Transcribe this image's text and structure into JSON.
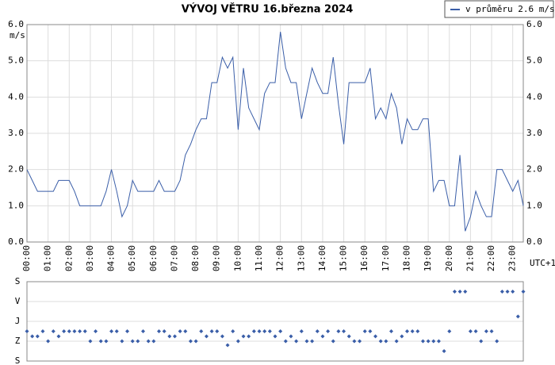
{
  "chart_data": [
    {
      "type": "line",
      "title": "VÝVOJ VĚTRU  16.března 2024",
      "y_label": "m/s",
      "x_label": "UTC+1",
      "grid": true,
      "legend": "top-right",
      "x": [
        0,
        0.25,
        0.5,
        0.75,
        1,
        1.25,
        1.5,
        1.75,
        2,
        2.25,
        2.5,
        2.75,
        3,
        3.25,
        3.5,
        3.75,
        4,
        4.25,
        4.5,
        4.75,
        5,
        5.25,
        5.5,
        5.75,
        6,
        6.25,
        6.5,
        6.75,
        7,
        7.25,
        7.5,
        7.75,
        8,
        8.25,
        8.5,
        8.75,
        9,
        9.25,
        9.5,
        9.75,
        10,
        10.25,
        10.5,
        10.75,
        11,
        11.25,
        11.5,
        11.75,
        12,
        12.25,
        12.5,
        12.75,
        13,
        13.25,
        13.5,
        13.75,
        14,
        14.25,
        14.5,
        14.75,
        15,
        15.25,
        15.5,
        15.75,
        16,
        16.25,
        16.5,
        16.75,
        17,
        17.25,
        17.5,
        17.75,
        18,
        18.25,
        18.5,
        18.75,
        19,
        19.25,
        19.5,
        19.75,
        20,
        20.25,
        20.5,
        20.75,
        21,
        21.25,
        21.5,
        21.75,
        22,
        22.25,
        22.5,
        22.75,
        23,
        23.25,
        23.5
      ],
      "series": [
        {
          "name": "v průměru 2.6 m/s",
          "color": "#3a5ea8",
          "values": [
            2.0,
            1.7,
            1.4,
            1.4,
            1.4,
            1.4,
            1.7,
            1.7,
            1.7,
            1.4,
            1.0,
            1.0,
            1.0,
            1.0,
            1.0,
            1.4,
            2.0,
            1.4,
            0.7,
            1.0,
            1.7,
            1.4,
            1.4,
            1.4,
            1.4,
            1.7,
            1.4,
            1.4,
            1.4,
            1.7,
            2.4,
            2.7,
            3.1,
            3.4,
            3.4,
            4.4,
            4.4,
            5.1,
            4.8,
            5.1,
            3.1,
            4.8,
            3.7,
            3.4,
            3.1,
            4.1,
            4.4,
            4.4,
            5.8,
            4.8,
            4.4,
            4.4,
            3.4,
            4.1,
            4.8,
            4.4,
            4.1,
            4.1,
            5.1,
            3.8,
            2.7,
            4.4,
            4.4,
            4.4,
            4.4,
            4.8,
            3.4,
            3.7,
            3.4,
            4.1,
            3.7,
            2.7,
            3.4,
            3.1,
            3.1,
            3.4,
            3.4,
            1.4,
            1.7,
            1.7,
            1.0,
            1.0,
            2.4,
            0.3,
            0.7,
            1.4,
            1.0,
            0.7,
            0.7,
            2.0,
            2.0,
            1.7,
            1.4,
            1.7,
            1.0
          ]
        }
      ],
      "xlim": [
        0,
        23.5
      ],
      "xticks": [
        {
          "value": 0,
          "label": "00:00"
        },
        {
          "value": 1,
          "label": "01:00"
        },
        {
          "value": 2,
          "label": "02:00"
        },
        {
          "value": 3,
          "label": "03:00"
        },
        {
          "value": 4,
          "label": "04:00"
        },
        {
          "value": 5,
          "label": "05:00"
        },
        {
          "value": 6,
          "label": "06:00"
        },
        {
          "value": 7,
          "label": "07:00"
        },
        {
          "value": 8,
          "label": "08:00"
        },
        {
          "value": 9,
          "label": "09:00"
        },
        {
          "value": 10,
          "label": "10:00"
        },
        {
          "value": 11,
          "label": "11:00"
        },
        {
          "value": 12,
          "label": "12:00"
        },
        {
          "value": 13,
          "label": "13:00"
        },
        {
          "value": 14,
          "label": "14:00"
        },
        {
          "value": 15,
          "label": "15:00"
        },
        {
          "value": 16,
          "label": "16:00"
        },
        {
          "value": 17,
          "label": "17:00"
        },
        {
          "value": 18,
          "label": "18:00"
        },
        {
          "value": 19,
          "label": "19:00"
        },
        {
          "value": 20,
          "label": "20:00"
        },
        {
          "value": 21,
          "label": "21:00"
        },
        {
          "value": 22,
          "label": "22:00"
        },
        {
          "value": 23,
          "label": "23:00"
        }
      ],
      "ylim": [
        0,
        6
      ],
      "yticks": [
        {
          "value": 0,
          "label": "0.0"
        },
        {
          "value": 1,
          "label": "1.0"
        },
        {
          "value": 2,
          "label": "2.0"
        },
        {
          "value": 3,
          "label": "3.0"
        },
        {
          "value": 4,
          "label": "4.0"
        },
        {
          "value": 5,
          "label": "5.0"
        },
        {
          "value": 6,
          "label": "6.0"
        }
      ]
    },
    {
      "type": "scatter",
      "color": "#3a5ea8",
      "y_inverted": true,
      "x": [
        0,
        0.25,
        0.5,
        0.75,
        1,
        1.25,
        1.5,
        1.75,
        2,
        2.25,
        2.5,
        2.75,
        3,
        3.25,
        3.5,
        3.75,
        4,
        4.25,
        4.5,
        4.75,
        5,
        5.25,
        5.5,
        5.75,
        6,
        6.25,
        6.5,
        6.75,
        7,
        7.25,
        7.5,
        7.75,
        8,
        8.25,
        8.5,
        8.75,
        9,
        9.25,
        9.5,
        9.75,
        10,
        10.25,
        10.5,
        10.75,
        11,
        11.25,
        11.5,
        11.75,
        12,
        12.25,
        12.5,
        12.75,
        13,
        13.25,
        13.5,
        13.75,
        14,
        14.25,
        14.5,
        14.75,
        15,
        15.25,
        15.5,
        15.75,
        16,
        16.25,
        16.5,
        16.75,
        17,
        17.25,
        17.5,
        17.75,
        18,
        18.25,
        18.5,
        18.75,
        19,
        19.25,
        19.5,
        19.75,
        20,
        20.25,
        20.5,
        20.75,
        21,
        21.25,
        21.5,
        21.75,
        22,
        22.25,
        22.5,
        22.75,
        23,
        23.25,
        23.5
      ],
      "values": [
        225,
        248,
        248,
        225,
        270,
        225,
        248,
        225,
        225,
        225,
        225,
        225,
        270,
        225,
        270,
        270,
        225,
        225,
        270,
        225,
        270,
        270,
        225,
        270,
        270,
        225,
        225,
        248,
        248,
        225,
        225,
        270,
        270,
        225,
        248,
        225,
        225,
        248,
        288,
        225,
        270,
        248,
        248,
        225,
        225,
        225,
        225,
        248,
        225,
        270,
        248,
        270,
        225,
        270,
        270,
        225,
        248,
        225,
        270,
        225,
        225,
        248,
        270,
        270,
        225,
        225,
        248,
        270,
        270,
        225,
        270,
        248,
        225,
        225,
        225,
        270,
        270,
        270,
        270,
        315,
        225,
        45,
        45,
        45,
        225,
        225,
        270,
        225,
        225,
        270,
        45,
        45,
        45,
        158,
        45
      ],
      "xlim": [
        0,
        23.5
      ],
      "ylim": [
        0,
        360
      ],
      "yticks": [
        {
          "value": 0,
          "label": "S"
        },
        {
          "value": 90,
          "label": "V"
        },
        {
          "value": 180,
          "label": "J"
        },
        {
          "value": 270,
          "label": "Z"
        },
        {
          "value": 360,
          "label": "S"
        }
      ]
    }
  ]
}
